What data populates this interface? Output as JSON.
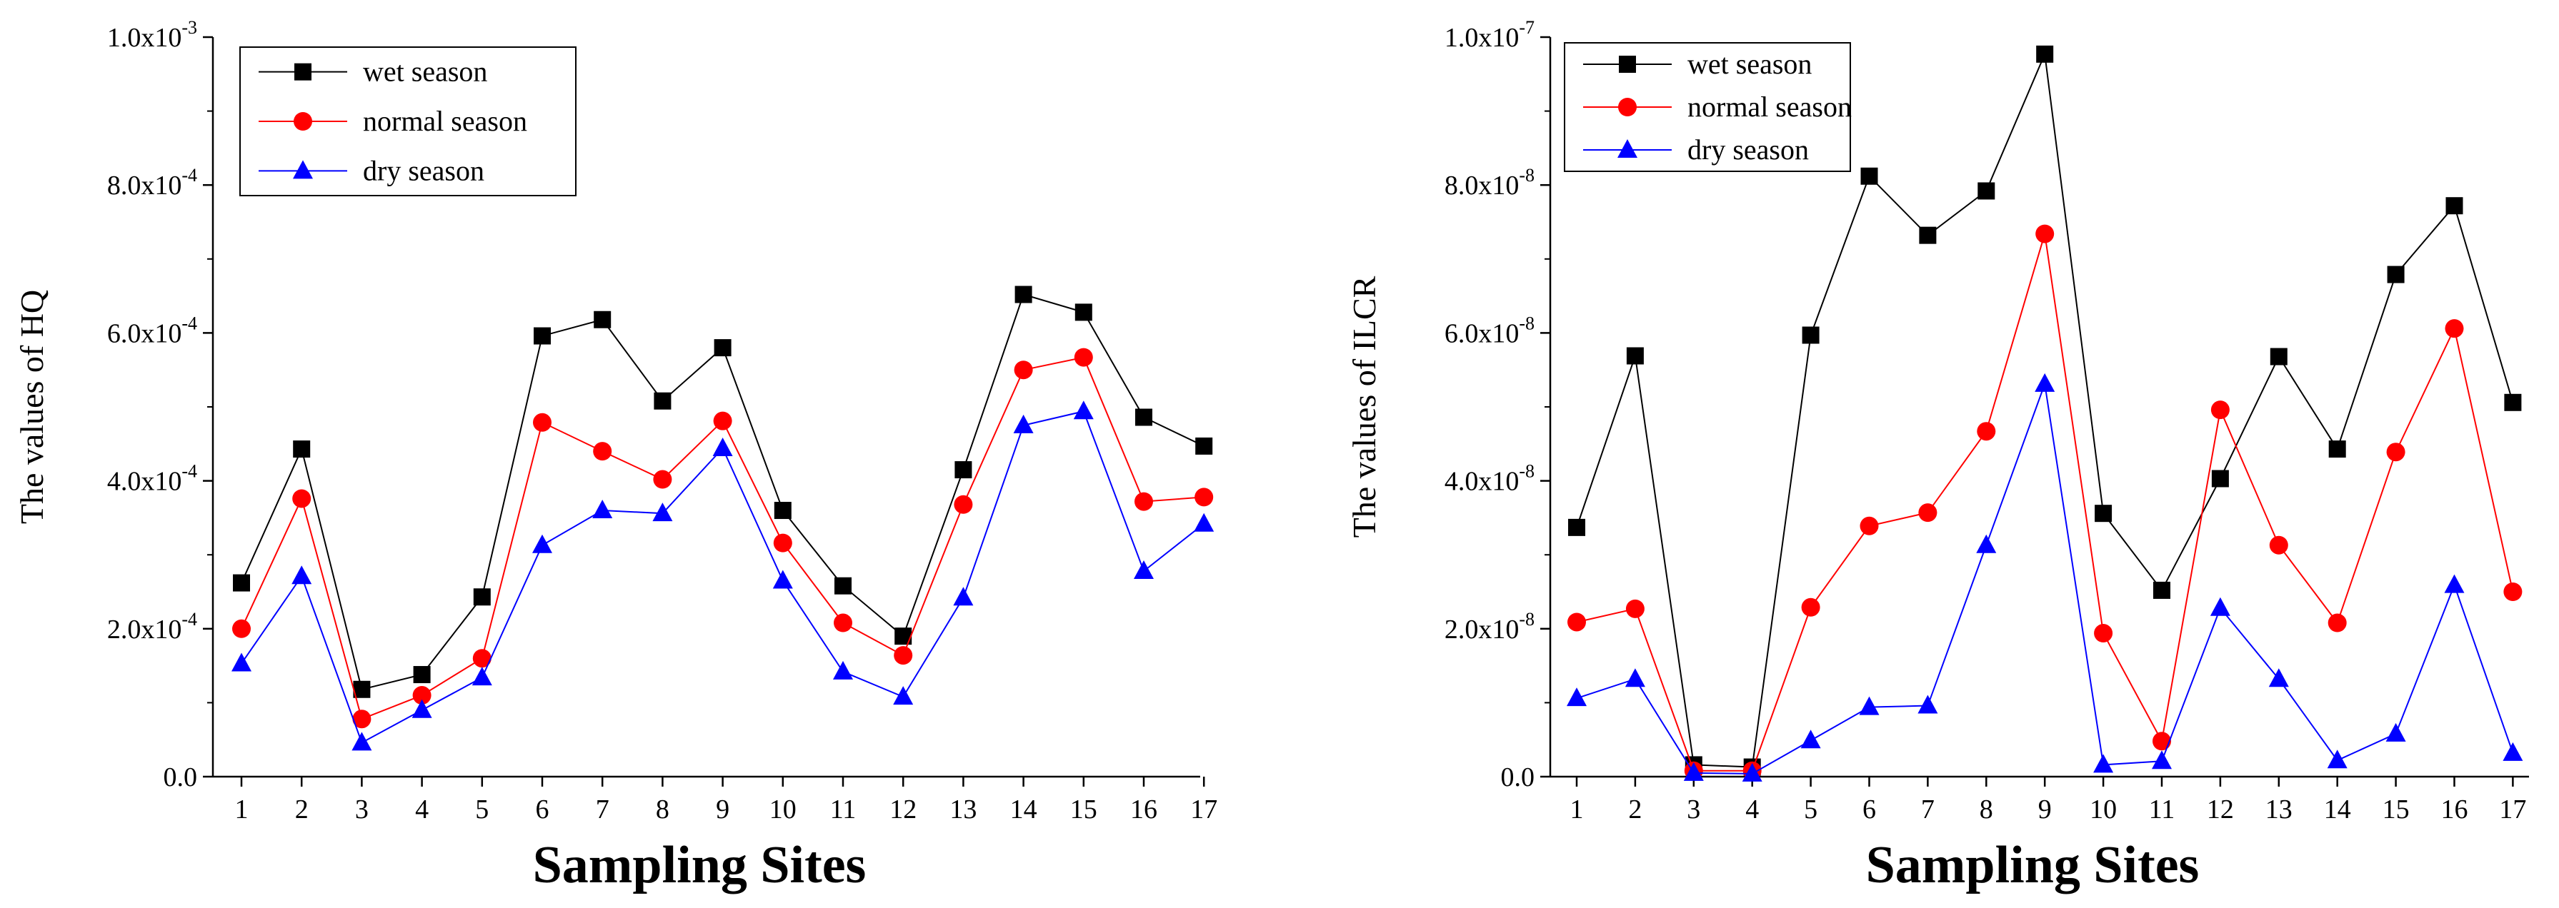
{
  "chart_data": [
    {
      "id": "hq",
      "type": "line",
      "title": "",
      "xlabel": "Sampling Sites",
      "ylabel": "The values of HQ",
      "categories": [
        "1",
        "2",
        "3",
        "4",
        "5",
        "6",
        "7",
        "8",
        "9",
        "10",
        "11",
        "12",
        "13",
        "14",
        "15",
        "16",
        "17"
      ],
      "ylim": [
        0,
        0.001
      ],
      "yticks": [
        {
          "value": 0,
          "mantissa": "0.0",
          "exp": ""
        },
        {
          "value": 0.0002,
          "mantissa": "2.0x10",
          "exp": "-4"
        },
        {
          "value": 0.0004,
          "mantissa": "4.0x10",
          "exp": "-4"
        },
        {
          "value": 0.0006,
          "mantissa": "6.0x10",
          "exp": "-4"
        },
        {
          "value": 0.0008,
          "mantissa": "8.0x10",
          "exp": "-4"
        },
        {
          "value": 0.001,
          "mantissa": "1.0x10",
          "exp": "-3"
        }
      ],
      "legend_position": "top-left",
      "series": [
        {
          "name": "wet season",
          "color": "#000000",
          "marker": "square",
          "values": [
            0.000262,
            0.000443,
            0.000118,
            0.000138,
            0.000243,
            0.000596,
            0.000618,
            0.000508,
            0.00058,
            0.00036,
            0.000258,
            0.00019,
            0.000415,
            0.000652,
            0.000628,
            0.000486,
            0.000447
          ]
        },
        {
          "name": "normal season",
          "color": "#ff0000",
          "marker": "circle",
          "values": [
            0.0002,
            0.000376,
            7.8e-05,
            0.00011,
            0.00016,
            0.000479,
            0.00044,
            0.000402,
            0.000481,
            0.000316,
            0.000208,
            0.000164,
            0.000368,
            0.00055,
            0.000567,
            0.000372,
            0.000378
          ]
        },
        {
          "name": "dry season",
          "color": "#0000ff",
          "marker": "triangle",
          "values": [
            0.000153,
            0.000271,
            4.6e-05,
            9e-05,
            0.000134,
            0.000313,
            0.00036,
            0.000356,
            0.000444,
            0.000265,
            0.000142,
            0.000108,
            0.000242,
            0.000475,
            0.000494,
            0.000278,
            0.000342
          ]
        }
      ]
    },
    {
      "id": "ilcr",
      "type": "line",
      "title": "",
      "xlabel": "Sampling Sites",
      "ylabel": "The values of ILCR",
      "categories": [
        "1",
        "2",
        "3",
        "4",
        "5",
        "6",
        "7",
        "8",
        "9",
        "10",
        "11",
        "12",
        "13",
        "14",
        "15",
        "16",
        "17"
      ],
      "ylim": [
        0,
        1e-07
      ],
      "yticks": [
        {
          "value": 0,
          "mantissa": "0.0",
          "exp": ""
        },
        {
          "value": 2e-08,
          "mantissa": "2.0x10",
          "exp": "-8"
        },
        {
          "value": 4e-08,
          "mantissa": "4.0x10",
          "exp": "-8"
        },
        {
          "value": 6e-08,
          "mantissa": "6.0x10",
          "exp": "-8"
        },
        {
          "value": 8e-08,
          "mantissa": "8.0x10",
          "exp": "-8"
        },
        {
          "value": 1e-07,
          "mantissa": "1.0x10",
          "exp": "-7"
        }
      ],
      "legend_position": "top-left",
      "series": [
        {
          "name": "wet season",
          "color": "#000000",
          "marker": "square",
          "values": [
            3.37e-08,
            5.69e-08,
            1.6e-09,
            1.3e-09,
            5.97e-08,
            8.12e-08,
            7.32e-08,
            7.92e-08,
            9.77e-08,
            3.56e-08,
            2.52e-08,
            4.03e-08,
            5.68e-08,
            4.43e-08,
            6.79e-08,
            7.72e-08,
            5.06e-08
          ]
        },
        {
          "name": "normal season",
          "color": "#ff0000",
          "marker": "circle",
          "values": [
            2.09e-08,
            2.27e-08,
            8e-10,
            8e-10,
            2.29e-08,
            3.39e-08,
            3.57e-08,
            4.67e-08,
            7.34e-08,
            1.94e-08,
            4.8e-09,
            4.96e-08,
            3.13e-08,
            2.08e-08,
            4.39e-08,
            6.06e-08,
            2.5e-08
          ]
        },
        {
          "name": "dry season",
          "color": "#0000ff",
          "marker": "triangle",
          "values": [
            1.06e-08,
            1.32e-08,
            5e-10,
            4e-10,
            4.9e-09,
            9.4e-09,
            9.6e-09,
            3.13e-08,
            5.31e-08,
            1.6e-09,
            2.1e-09,
            2.28e-08,
            1.32e-08,
            2.2e-09,
            5.8e-09,
            2.59e-08,
            3.2e-09
          ]
        }
      ]
    }
  ]
}
